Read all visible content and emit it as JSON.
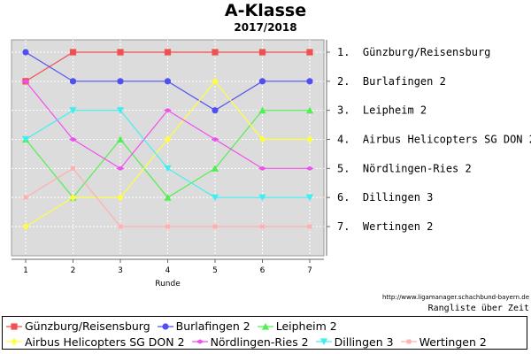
{
  "chart_data": {
    "type": "line",
    "title": "A-Klasse",
    "subtitle": "2017/2018",
    "xlabel": "Runde",
    "ylabel": "",
    "x": [
      1,
      2,
      3,
      4,
      5,
      6,
      7
    ],
    "ylim": [
      1,
      7
    ],
    "y_inverted": true,
    "grid": true,
    "legend_position": "bottom",
    "right_axis_labels": [
      "1.  Günzburg/Reisensburg",
      "2.  Burlafingen 2",
      "3.  Leipheim 2",
      "4.  Airbus Helicopters SG DON 2",
      "5.  Nördlingen-Ries 2",
      "6.  Dillingen 3",
      "7.  Wertingen 2"
    ],
    "series": [
      {
        "name": "Günzburg/Reisensburg",
        "values": [
          2,
          1,
          1,
          1,
          1,
          1,
          1
        ],
        "color": "#f05050",
        "marker": "square"
      },
      {
        "name": "Burlafingen 2",
        "values": [
          1,
          2,
          2,
          2,
          3,
          2,
          2
        ],
        "color": "#5050f0",
        "marker": "circle"
      },
      {
        "name": "Leipheim 2",
        "values": [
          4,
          6,
          4,
          6,
          5,
          3,
          3
        ],
        "color": "#50f050",
        "marker": "triangle-up"
      },
      {
        "name": "Airbus Helicopters SG DON 2",
        "values": [
          7,
          6,
          6,
          4,
          2,
          4,
          4
        ],
        "color": "#ffff40",
        "marker": "diamond"
      },
      {
        "name": "Nördlingen-Ries 2",
        "values": [
          2,
          4,
          5,
          3,
          4,
          5,
          5
        ],
        "color": "#f050f0",
        "marker": "diamond-h"
      },
      {
        "name": "Dillingen 3",
        "values": [
          4,
          3,
          3,
          5,
          6,
          6,
          6
        ],
        "color": "#40f0f0",
        "marker": "triangle-down"
      },
      {
        "name": "Wertingen 2",
        "values": [
          6,
          5,
          7,
          7,
          7,
          7,
          7
        ],
        "color": "#ffb0b0",
        "marker": "small-square"
      }
    ]
  },
  "footer": {
    "source": "http://www.ligamanager.schachbund-bayern.de",
    "caption": "Rangliste über Zeit"
  }
}
